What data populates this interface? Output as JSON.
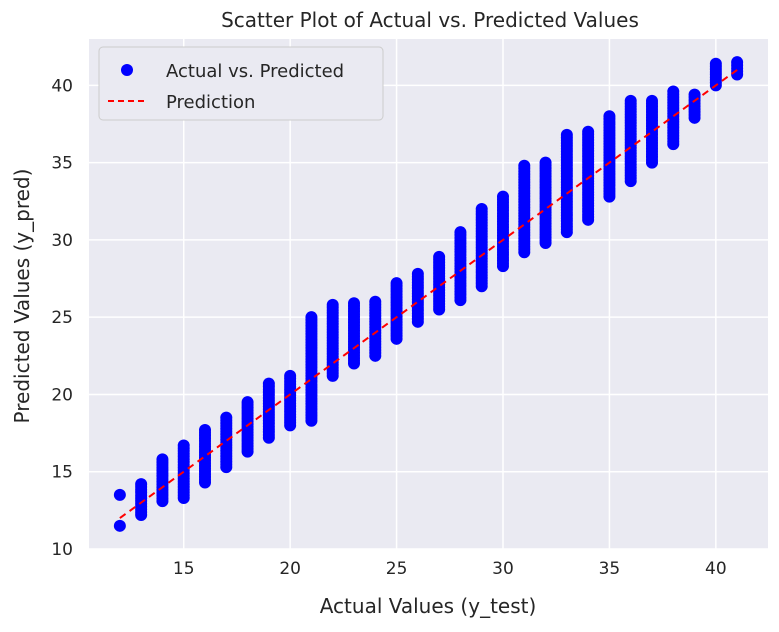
{
  "chart_data": {
    "type": "scatter",
    "title": "Scatter Plot of Actual vs. Predicted Values",
    "xlabel": "Actual Values (y_test)",
    "ylabel": "Predicted Values (y_pred)",
    "xlim": [
      10.55,
      42.45
    ],
    "ylim": [
      10,
      43
    ],
    "xticks": [
      15,
      20,
      25,
      30,
      35,
      40
    ],
    "yticks": [
      10,
      15,
      20,
      25,
      30,
      35,
      40
    ],
    "grid": true,
    "background": "#eaeaf2",
    "legend_position": "top-left",
    "series": [
      {
        "name": "Actual vs. Predicted",
        "kind": "scatter",
        "color": "#0000ff",
        "columns": [
          {
            "x": 12,
            "y_min": 11.5,
            "y_max": 13.5,
            "outliers": [
              11.5,
              13.5
            ]
          },
          {
            "x": 13,
            "y_min": 12.2,
            "y_max": 14.2
          },
          {
            "x": 14,
            "y_min": 13.1,
            "y_max": 15.8
          },
          {
            "x": 15,
            "y_min": 13.3,
            "y_max": 16.7
          },
          {
            "x": 16,
            "y_min": 14.3,
            "y_max": 17.7
          },
          {
            "x": 17,
            "y_min": 15.3,
            "y_max": 18.5
          },
          {
            "x": 18,
            "y_min": 16.3,
            "y_max": 19.5
          },
          {
            "x": 19,
            "y_min": 17.2,
            "y_max": 20.7
          },
          {
            "x": 20,
            "y_min": 18.0,
            "y_max": 21.2
          },
          {
            "x": 21,
            "y_min": 18.3,
            "y_max": 25.0
          },
          {
            "x": 22,
            "y_min": 21.2,
            "y_max": 25.8
          },
          {
            "x": 23,
            "y_min": 22.0,
            "y_max": 25.9
          },
          {
            "x": 24,
            "y_min": 22.5,
            "y_max": 26.0
          },
          {
            "x": 25,
            "y_min": 23.6,
            "y_max": 27.2
          },
          {
            "x": 26,
            "y_min": 24.7,
            "y_max": 27.8
          },
          {
            "x": 27,
            "y_min": 25.5,
            "y_max": 28.9
          },
          {
            "x": 28,
            "y_min": 26.1,
            "y_max": 30.5
          },
          {
            "x": 29,
            "y_min": 27.0,
            "y_max": 32.0
          },
          {
            "x": 30,
            "y_min": 28.3,
            "y_max": 32.8
          },
          {
            "x": 31,
            "y_min": 29.2,
            "y_max": 34.8
          },
          {
            "x": 32,
            "y_min": 29.8,
            "y_max": 35.0
          },
          {
            "x": 33,
            "y_min": 30.5,
            "y_max": 36.8
          },
          {
            "x": 34,
            "y_min": 31.3,
            "y_max": 37.0
          },
          {
            "x": 35,
            "y_min": 32.8,
            "y_max": 38.0
          },
          {
            "x": 36,
            "y_min": 33.8,
            "y_max": 39.0
          },
          {
            "x": 37,
            "y_min": 35.0,
            "y_max": 39.0
          },
          {
            "x": 38,
            "y_min": 36.2,
            "y_max": 39.6
          },
          {
            "x": 39,
            "y_min": 37.9,
            "y_max": 39.4
          },
          {
            "x": 40,
            "y_min": 40.0,
            "y_max": 41.4
          },
          {
            "x": 41,
            "y_min": 40.7,
            "y_max": 41.5
          }
        ]
      },
      {
        "name": "Prediction",
        "kind": "line",
        "color": "#ff0000",
        "style": "dashed",
        "points": [
          [
            12,
            12
          ],
          [
            41,
            41
          ]
        ]
      }
    ]
  }
}
